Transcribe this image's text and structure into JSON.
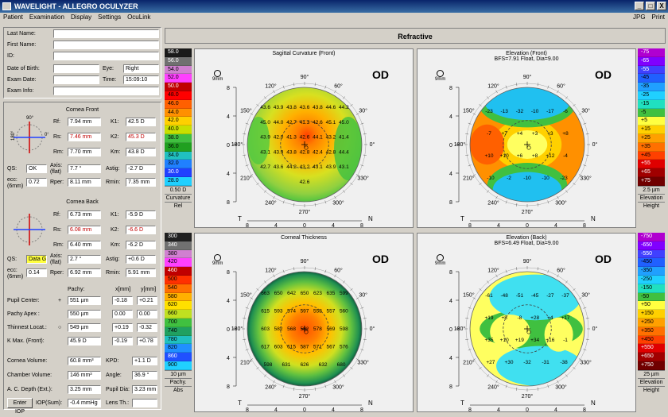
{
  "window": {
    "title": "WAVELIGHT  -  ALLEGRO OCULYZER",
    "min": "_",
    "max": "□",
    "close": "X"
  },
  "menu": {
    "items": [
      "Patient",
      "Examination",
      "Display",
      "Settings",
      "OcuLink"
    ],
    "right": [
      "JPG",
      "Print"
    ]
  },
  "patient": {
    "last_name_label": "Last Name:",
    "first_name_label": "First Name:",
    "id_label": "ID:",
    "dob_label": "Date of Birth:",
    "exam_date_label": "Exam Date:",
    "exam_info_label": "Exam Info:",
    "eye_label": "Eye:",
    "eye_value": "Right",
    "time_label": "Time:",
    "time_value": "15:09:10"
  },
  "cornea_front": {
    "title": "Cornea Front",
    "rf_label": "Rf:",
    "rf": "7.94 mm",
    "rs_label": "Rs:",
    "rs": "7.46 mm",
    "rm_label": "Rm:",
    "rm": "7.70 mm",
    "k1_label": "K1:",
    "k1": "42.5 D",
    "k2_label": "K2:",
    "k2": "45.3 D",
    "km_label": "Km:",
    "km": "43.8 D",
    "qs_label": "QS:",
    "qs": "OK",
    "axis_label": "Axis: (flat)",
    "axis": "7.7 °",
    "astig_label": "Astig:",
    "astig": "-2.7 D",
    "ecc_label": "ecc: (6mm)",
    "ecc": "0.72",
    "rper_label": "Rper:",
    "rper": "8.11 mm",
    "rmin_label": "Rmin:",
    "rmin": "7.35 mm",
    "dial": {
      "top": "90°",
      "left": "180°",
      "right": "0°"
    }
  },
  "cornea_back": {
    "title": "Cornea Back",
    "rf": "6.73 mm",
    "rs": "6.08 mm",
    "rm": "6.40 mm",
    "k1": "-5.9 D",
    "k2": "-6.6 D",
    "km": "-6.2 D",
    "qs": "Data G",
    "axis": "2.7 °",
    "astig": "+0.6 D",
    "ecc": "0.14",
    "rper": "6.92 mm",
    "rmin": "5.91 mm"
  },
  "pachy_table": {
    "col_pachy": "Pachy:",
    "col_x": "x[mm]",
    "col_y": "y[mm]",
    "rows": [
      {
        "label": "Pupil Center:",
        "sym": "+",
        "pachy": "551 µm",
        "x": "-0.18",
        "y": "+0.21"
      },
      {
        "label": "Pachy Apex :",
        "sym": "",
        "pachy": "550 µm",
        "x": "0.00",
        "y": "0.00"
      },
      {
        "label": "Thinnest Locat.:",
        "sym": "○",
        "pachy": "549 µm",
        "x": "+0.19",
        "y": "-0.32"
      },
      {
        "label": "K Max. (Front):",
        "sym": "",
        "pachy": "45.9 D",
        "x": "-0.19",
        "y": "+0.78"
      }
    ]
  },
  "volumes": {
    "cornea_volume_label": "Cornea Volume:",
    "cornea_volume": "60.8 mm³",
    "kpd_label": "KPD:",
    "kpd": "+1.1 D",
    "chamber_volume_label": "Chamber Volume:",
    "chamber_volume": "146 mm³",
    "angle_label": "Angle:",
    "angle": "36.9 °",
    "acd_label": "A. C. Depth (Ext.):",
    "acd": "3.25 mm",
    "pupil_dia_label": "Pupil Dia:",
    "pupil_dia": "3.23 mm",
    "enter_iop": "Enter IOP",
    "iop_label": "IOP(Sum):",
    "iop": "-0.4 mmHg",
    "lens_th_label": "Lens Th.:",
    "lens_th": ""
  },
  "header": {
    "refractive": "Refractive"
  },
  "scales": {
    "curvature": {
      "values": [
        "58.0",
        "56.0",
        "54.0",
        "52.0",
        "50.0",
        "48.0",
        "46.0",
        "44.0",
        "42.0",
        "40.0",
        "38.0",
        "36.0",
        "34.0",
        "32.0",
        "30.0",
        "28.0"
      ],
      "colors": [
        "#1a1a1a",
        "#707070",
        "#d080d0",
        "#ff40ff",
        "#c00000",
        "#ff0000",
        "#ff6000",
        "#ff9000",
        "#ffd000",
        "#c8e000",
        "#40c040",
        "#20a020",
        "#20c0c0",
        "#2080ff",
        "#2040ff",
        "#20d0ff"
      ],
      "step": "0.50 D",
      "cap1": "Curvature",
      "cap2": "Rel"
    },
    "elev_front": {
      "values": [
        "-75",
        "-65",
        "-55",
        "-45",
        "-35",
        "-25",
        "-15",
        "-5",
        "+5",
        "+15",
        "+25",
        "+35",
        "+45",
        "+55",
        "+65",
        "+75"
      ],
      "colors": [
        "#b000d0",
        "#8000ff",
        "#4040ff",
        "#2060ff",
        "#20a0ff",
        "#20d0ff",
        "#20e0c0",
        "#40c040",
        "#ffff40",
        "#ffd000",
        "#ffa000",
        "#ff7000",
        "#ff4000",
        "#e00000",
        "#a00000",
        "#700000"
      ],
      "step": "2.5 µm",
      "cap1": "Elevation",
      "cap2": "Height"
    },
    "thickness": {
      "values": [
        "300",
        "340",
        "380",
        "420",
        "460",
        "500",
        "540",
        "580",
        "620",
        "660",
        "700",
        "740",
        "780",
        "820",
        "860",
        "900"
      ],
      "colors": [
        "#202020",
        "#707070",
        "#d080d0",
        "#ff40ff",
        "#c00000",
        "#ff3000",
        "#ff7000",
        "#ffb000",
        "#ffe000",
        "#c0e020",
        "#40c040",
        "#20a060",
        "#20c0c0",
        "#2090ff",
        "#2050ff",
        "#20d0ff"
      ],
      "step": "10 µm",
      "cap1": "Pachy.",
      "cap2": "Abs"
    },
    "elev_back": {
      "values": [
        "-750",
        "-650",
        "-550",
        "-450",
        "-350",
        "-250",
        "-150",
        "-50",
        "+50",
        "+150",
        "+250",
        "+350",
        "+450",
        "+550",
        "+650",
        "+750"
      ],
      "colors": [
        "#b000d0",
        "#8000ff",
        "#4040ff",
        "#2060ff",
        "#20a0ff",
        "#20d0ff",
        "#20e0c0",
        "#40c040",
        "#ffff40",
        "#ffd000",
        "#ffa000",
        "#ff7000",
        "#ff4000",
        "#e00000",
        "#a00000",
        "#700000"
      ],
      "step": "25 µm",
      "cap1": "Elevation",
      "cap2": "Height"
    }
  },
  "maps": {
    "sagittal": {
      "title": "Sagittal Curvature (Front)",
      "subtitle": "",
      "od": "OD",
      "zoom": "9mm",
      "values": [
        "43.6",
        "43.9",
        "43.8",
        "43.6",
        "43.8",
        "44.6",
        "44.2",
        "45.0",
        "44.0",
        "42.7",
        "41.3",
        "42.6",
        "45.1",
        "45.0",
        "43.9",
        "42.0",
        "41.3",
        "42.6",
        "44.1",
        "43.2",
        "41.4",
        "43.1",
        "43.9",
        "43.8",
        "42.8",
        "42.4",
        "42.8",
        "44.4",
        "42.7",
        "43.6",
        "44.2",
        "43.2",
        "43.1",
        "43.9",
        "43.1",
        "42.6"
      ]
    },
    "elev_front": {
      "title": "Elevation (Front)",
      "subtitle": "BFS=7.91 Float, Dia=9.00",
      "od": "OD",
      "zoom": "9mm",
      "values": [
        "-23",
        "-13",
        "-32",
        "-10",
        "-17",
        "-6",
        "-7",
        "+7",
        "+4",
        "+3",
        "+3",
        "+8",
        "+10",
        "+10",
        "+6",
        "+8",
        "+12",
        "-4",
        "-10",
        "-2",
        "-10",
        "-10",
        "-23"
      ]
    },
    "thickness": {
      "title": "Corneal Thickness",
      "subtitle": "",
      "od": "OD",
      "zoom": "9mm",
      "values": [
        "663",
        "650",
        "642",
        "650",
        "623",
        "635",
        "599",
        "615",
        "593",
        "574",
        "597",
        "558",
        "557",
        "560",
        "603",
        "582",
        "568",
        "582",
        "578",
        "569",
        "598",
        "617",
        "603",
        "615",
        "587",
        "571",
        "567",
        "576",
        "598",
        "631",
        "626",
        "632",
        "680"
      ]
    },
    "elev_back": {
      "title": "Elevation (Back)",
      "subtitle": "BFS=6.49 Float, Dia=9.00",
      "od": "OD",
      "zoom": "9mm",
      "values": [
        "-61",
        "-48",
        "-51",
        "-45",
        "-27",
        "-37",
        "+19",
        "+8",
        "-8",
        "+28",
        "+4",
        "+17",
        "+35",
        "+10",
        "+19",
        "+34",
        "+16",
        "-1",
        "+27",
        "+30",
        "-32",
        "-31",
        "-38"
      ]
    },
    "axes": {
      "top": "90°",
      "a120": "120°",
      "a60": "60°",
      "a150": "150°",
      "a30": "30°",
      "a180": "180°",
      "a0": "0°",
      "a210": "210°",
      "a330": "330°",
      "a240": "240°",
      "a300": "300°",
      "bottom": "270°",
      "T": "T",
      "N": "N",
      "yticks": [
        "8",
        "4",
        "0",
        "4",
        "8"
      ],
      "xticks": [
        "8",
        "4",
        "0",
        "4",
        "8"
      ]
    }
  }
}
